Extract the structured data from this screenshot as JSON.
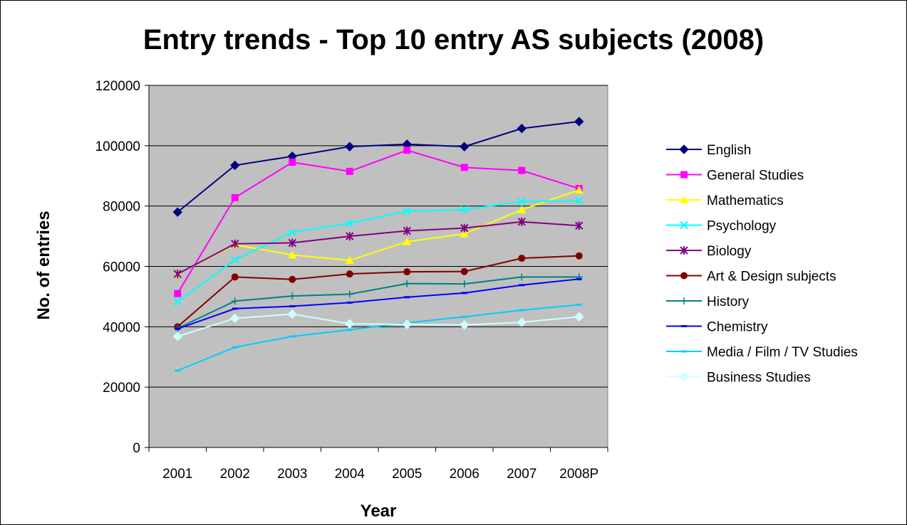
{
  "chart_data": {
    "type": "line",
    "title": "Entry trends - Top 10 entry AS subjects (2008)",
    "xlabel": "Year",
    "ylabel": "No. of entries",
    "categories": [
      "2001",
      "2002",
      "2003",
      "2004",
      "2005",
      "2006",
      "2007",
      "2008P"
    ],
    "ylim": [
      0,
      120000
    ],
    "yticks": [
      0,
      20000,
      40000,
      60000,
      80000,
      100000,
      120000
    ],
    "ytick_labels": [
      "0",
      "20000",
      "40000",
      "60000",
      "80000",
      "100000",
      "120000"
    ],
    "grid": "horizontal",
    "plot_background": "#c0c0c0",
    "legend_position": "right",
    "series": [
      {
        "name": "English",
        "color": "#000080",
        "marker": "diamond",
        "values": [
          78000,
          93500,
          96500,
          99700,
          100500,
          99700,
          105700,
          108000
        ]
      },
      {
        "name": "General Studies",
        "color": "#ff00ff",
        "marker": "square",
        "values": [
          51000,
          82800,
          94500,
          91500,
          98500,
          92800,
          91800,
          85800
        ]
      },
      {
        "name": "Mathematics",
        "color": "#ffff00",
        "marker": "triangle",
        "values": [
          57500,
          67200,
          63800,
          62000,
          68200,
          70800,
          78800,
          85300
        ]
      },
      {
        "name": "Psychology",
        "color": "#00ffff",
        "marker": "x",
        "values": [
          48300,
          62200,
          71300,
          74300,
          78300,
          78800,
          81500,
          81800
        ]
      },
      {
        "name": "Biology",
        "color": "#800080",
        "marker": "star",
        "values": [
          57500,
          67500,
          67800,
          70000,
          71800,
          72700,
          74800,
          73500
        ]
      },
      {
        "name": "Art & Design subjects",
        "color": "#800000",
        "marker": "circle",
        "values": [
          40000,
          56500,
          55700,
          57500,
          58200,
          58300,
          62700,
          63500
        ]
      },
      {
        "name": "History",
        "color": "#008080",
        "marker": "plus",
        "values": [
          39500,
          48500,
          50200,
          50800,
          54300,
          54200,
          56500,
          56500
        ]
      },
      {
        "name": "Chemistry",
        "color": "#0000ff",
        "marker": "dash",
        "values": [
          39300,
          46000,
          46800,
          48000,
          49800,
          51200,
          53800,
          55800
        ]
      },
      {
        "name": "Media / Film / TV Studies",
        "color": "#00ccff",
        "marker": "dash",
        "values": [
          25500,
          33200,
          36800,
          39000,
          41300,
          43300,
          45500,
          47300
        ]
      },
      {
        "name": "Business Studies",
        "color": "#ccffff",
        "marker": "diamond",
        "values": [
          36800,
          42800,
          44200,
          41000,
          40800,
          40600,
          41500,
          43300
        ]
      }
    ]
  }
}
